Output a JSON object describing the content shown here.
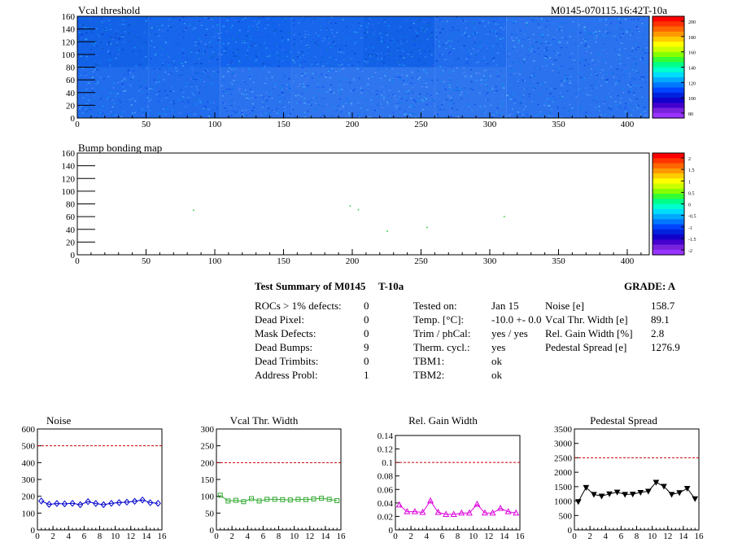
{
  "header": {
    "map_title": "Vcal threshold",
    "module_id": "M0145-070115.16:42T-10a",
    "bump_title": "Bump bonding map"
  },
  "threshold_map": {
    "x_ticks": [
      "0",
      "50",
      "100",
      "150",
      "200",
      "250",
      "300",
      "350",
      "400"
    ],
    "y_ticks": [
      "0",
      "20",
      "40",
      "60",
      "80",
      "100",
      "120",
      "140",
      "160"
    ],
    "palette_ticks": [
      "80",
      "100",
      "120",
      "140",
      "160",
      "180",
      "200"
    ]
  },
  "bump_map": {
    "x_ticks": [
      "0",
      "50",
      "100",
      "150",
      "200",
      "250",
      "300",
      "350",
      "400"
    ],
    "y_ticks": [
      "0",
      "20",
      "40",
      "60",
      "80",
      "100",
      "120",
      "140",
      "160"
    ],
    "palette_ticks": [
      "-2",
      "-1.5",
      "-1",
      "-0.5",
      "0",
      "0.5",
      "1",
      "1.5",
      "2"
    ],
    "defects": [
      {
        "x": 84,
        "y": 71
      },
      {
        "x": 198,
        "y": 78
      },
      {
        "x": 204,
        "y": 72
      },
      {
        "x": 225,
        "y": 38
      },
      {
        "x": 254,
        "y": 44
      },
      {
        "x": 310,
        "y": 61
      }
    ]
  },
  "summary": {
    "title": "Test Summary of M0145",
    "temp_tag": "T-10a",
    "grade": "GRADE:  A",
    "left_labels": [
      "ROCs > 1% defects:",
      "Dead Pixel:",
      "Mask Defects:",
      "Dead Bumps:",
      "Dead Trimbits:",
      "Address Probl:"
    ],
    "left_values": [
      "0",
      "0",
      "0",
      "9",
      "0",
      "1"
    ],
    "mid_labels": [
      "Tested on:",
      "Temp. [°C]:",
      "Trim / phCal:",
      "Therm. cycl.:",
      "TBM1:",
      "TBM2:"
    ],
    "mid_values": [
      "Jan 15",
      "-10.0 +- 0.0",
      "yes / yes",
      "yes",
      "ok",
      "ok"
    ],
    "right_labels": [
      "Noise [e]",
      "Vcal Thr. Width [e]",
      "Rel. Gain Width [%]",
      "Pedestal Spread [e]"
    ],
    "right_values": [
      "158.7",
      "89.1",
      "2.8",
      "1276.9"
    ]
  },
  "chart_data": [
    {
      "type": "line",
      "title": "Noise",
      "xlim": [
        0,
        16
      ],
      "ylim": [
        0,
        600
      ],
      "x_ticks": [
        "0",
        "2",
        "4",
        "6",
        "8",
        "10",
        "12",
        "14",
        "16"
      ],
      "y_ticks": [
        "0",
        "100",
        "200",
        "300",
        "400",
        "500",
        "600"
      ],
      "threshold": 500,
      "color": "#0000cc",
      "marker": "diamond-open",
      "x": [
        0,
        1,
        2,
        3,
        4,
        5,
        6,
        7,
        8,
        9,
        10,
        11,
        12,
        13,
        14,
        15
      ],
      "values": [
        172,
        152,
        157,
        155,
        158,
        150,
        168,
        157,
        150,
        158,
        162,
        165,
        170,
        178,
        162,
        158
      ]
    },
    {
      "type": "line",
      "title": "Vcal Thr. Width",
      "xlim": [
        0,
        16
      ],
      "ylim": [
        0,
        300
      ],
      "x_ticks": [
        "0",
        "2",
        "4",
        "6",
        "8",
        "10",
        "12",
        "14",
        "16"
      ],
      "y_ticks": [
        "0",
        "50",
        "100",
        "150",
        "200",
        "250",
        "300"
      ],
      "threshold": 200,
      "color": "#33aa33",
      "marker": "square-open",
      "x": [
        0,
        1,
        2,
        3,
        4,
        5,
        6,
        7,
        8,
        9,
        10,
        11,
        12,
        13,
        14,
        15
      ],
      "values": [
        103,
        86,
        88,
        84,
        93,
        86,
        91,
        91,
        90,
        89,
        91,
        90,
        92,
        94,
        91,
        87
      ]
    },
    {
      "type": "line",
      "title": "Rel. Gain Width",
      "xlim": [
        0,
        16
      ],
      "ylim": [
        0,
        0.14
      ],
      "x_ticks": [
        "0",
        "2",
        "4",
        "6",
        "8",
        "10",
        "12",
        "14",
        "16"
      ],
      "y_ticks": [
        "0",
        "0.02",
        "0.04",
        "0.06",
        "0.08",
        "0.1",
        "0.12",
        "0.14"
      ],
      "threshold": 0.1,
      "color": "#dd00dd",
      "marker": "triangle-open",
      "x": [
        0,
        1,
        2,
        3,
        4,
        5,
        6,
        7,
        8,
        9,
        10,
        11,
        12,
        13,
        14,
        15
      ],
      "values": [
        0.037,
        0.027,
        0.027,
        0.026,
        0.043,
        0.026,
        0.023,
        0.023,
        0.025,
        0.025,
        0.038,
        0.025,
        0.025,
        0.032,
        0.027,
        0.025
      ]
    },
    {
      "type": "line",
      "title": "Pedestal Spread",
      "xlim": [
        0,
        16
      ],
      "ylim": [
        0,
        3500
      ],
      "x_ticks": [
        "0",
        "2",
        "4",
        "6",
        "8",
        "10",
        "12",
        "14",
        "16"
      ],
      "y_ticks": [
        "0",
        "500",
        "1000",
        "1500",
        "2000",
        "2500",
        "3000",
        "3500"
      ],
      "threshold": 2500,
      "color": "#000000",
      "marker": "triangle-down",
      "x": [
        0,
        1,
        2,
        3,
        4,
        5,
        6,
        7,
        8,
        9,
        10,
        11,
        12,
        13,
        14,
        15
      ],
      "values": [
        980,
        1470,
        1230,
        1170,
        1250,
        1310,
        1230,
        1240,
        1300,
        1340,
        1650,
        1510,
        1230,
        1290,
        1440,
        1080
      ]
    }
  ]
}
